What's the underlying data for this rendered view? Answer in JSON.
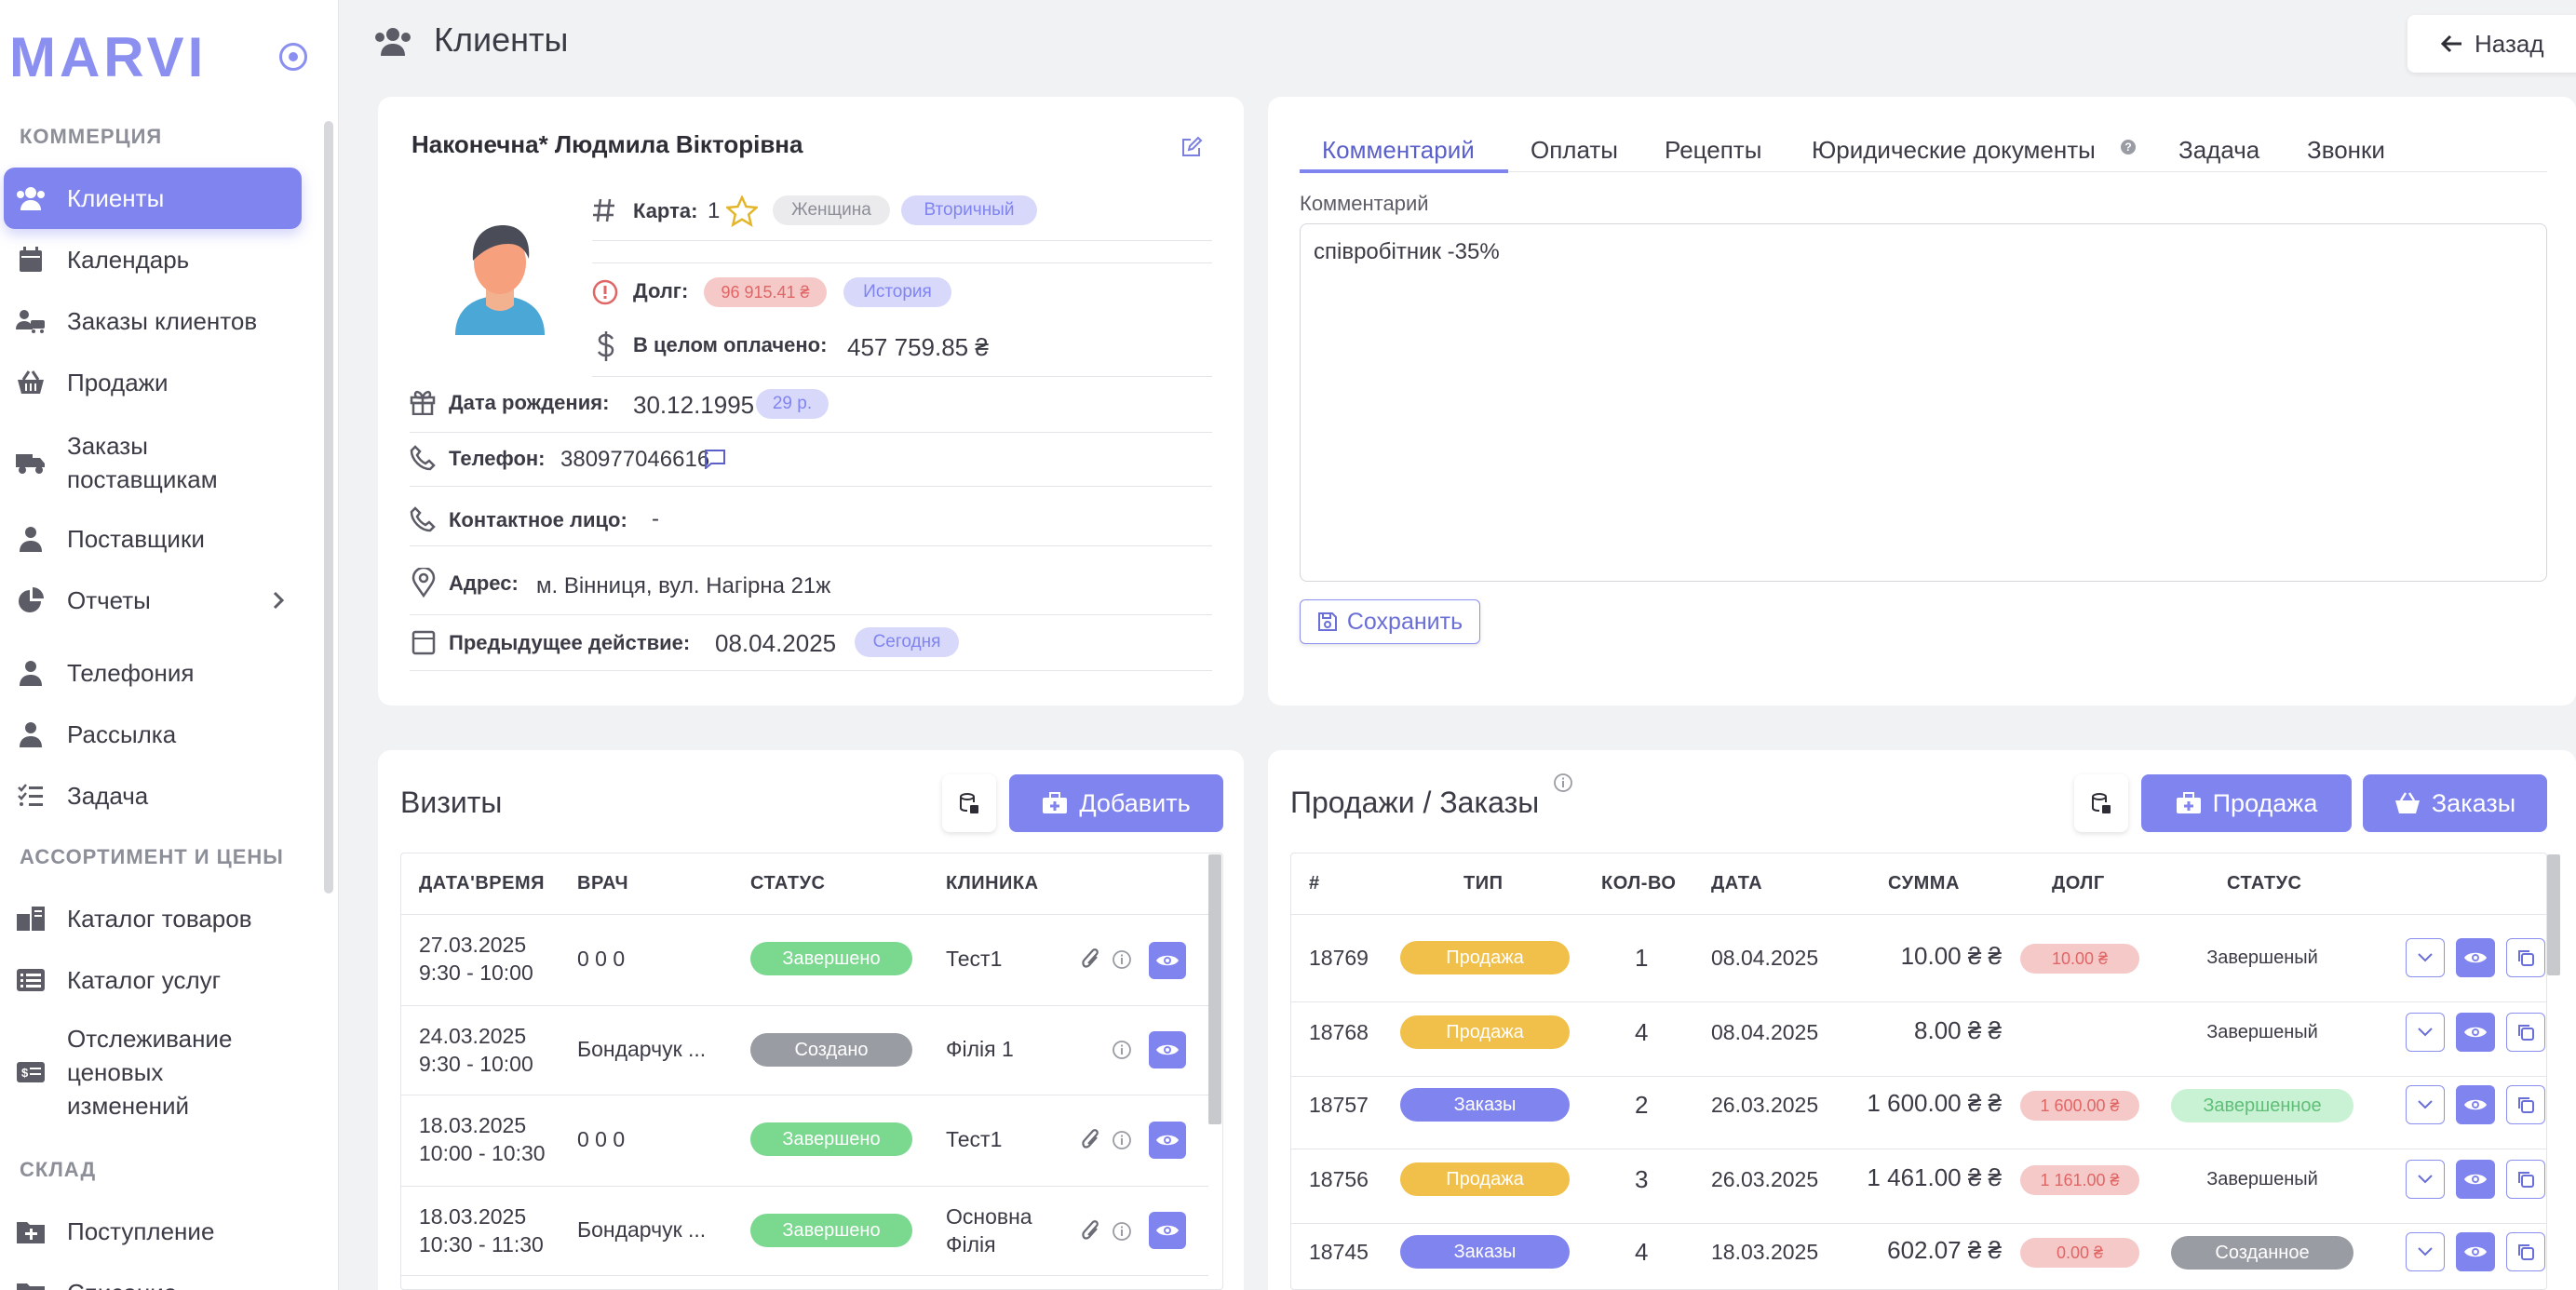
{
  "sidebar": {
    "logo": "MARVI",
    "sections": {
      "commerce": "КОММЕРЦИЯ",
      "assortment": "АССОРТИМЕНТ И ЦЕНЫ",
      "warehouse": "СКЛАД"
    },
    "items": [
      {
        "label": "Клиенты",
        "icon": "users-icon"
      },
      {
        "label": "Календарь",
        "icon": "calendar-icon"
      },
      {
        "label": "Заказы клиентов",
        "icon": "cart-user-icon"
      },
      {
        "label": "Продажи",
        "icon": "basket-icon"
      },
      {
        "label": "Заказы поставщикам",
        "icon": "truck-icon"
      },
      {
        "label": "Поставщики",
        "icon": "user-tie-icon"
      },
      {
        "label": "Отчеты",
        "icon": "pie-chart-icon"
      },
      {
        "label": "Телефония",
        "icon": "user-headset-icon"
      },
      {
        "label": "Рассылка",
        "icon": "user-tie-icon"
      },
      {
        "label": "Задача",
        "icon": "checklist-icon"
      },
      {
        "label": "Каталог товаров",
        "icon": "catalog-icon"
      },
      {
        "label": "Каталог услуг",
        "icon": "list-icon"
      },
      {
        "label": "Отслеживание ценовых изменений",
        "icon": "money-icon"
      },
      {
        "label": "Поступление",
        "icon": "folder-plus-icon"
      },
      {
        "label": "Списание",
        "icon": "folder-minus-icon"
      }
    ]
  },
  "header": {
    "title": "Клиенты",
    "back": "Назад"
  },
  "client": {
    "name": "Наконечна* Людмила Вікторівна",
    "card_label": "Карта:",
    "card_value": "1",
    "gender": "Женщина",
    "type": "Вторичный",
    "debt_label": "Долг:",
    "debt_value": "96 915.41 ₴",
    "history": "История",
    "paid_label": "В целом оплачено:",
    "paid_value": "457 759.85 ₴",
    "birth_label": "Дата рождения:",
    "birth_value": "30.12.1995",
    "age": "29 р.",
    "phone_label": "Телефон:",
    "phone_value": "380977046616",
    "contact_label": "Контактное лицо:",
    "contact_value": "-",
    "address_label": "Адрес:",
    "address_value": "м. Вінниця, вул. Нагірна 21ж",
    "prev_label": "Предыдущее действие:",
    "prev_value": "08.04.2025",
    "prev_badge": "Сегодня"
  },
  "tabs": [
    "Комментарий",
    "Оплаты",
    "Рецепты",
    "Юридические документы",
    "Задача",
    "Звонки"
  ],
  "comment": {
    "label": "Комментарий",
    "text": "співробітник -35%",
    "save": "Сохранить"
  },
  "visits": {
    "title": "Визиты",
    "add": "Добавить",
    "columns": [
      "ДАТА'ВРЕМЯ",
      "ВРАЧ",
      "СТАТУС",
      "КЛИНИКА"
    ],
    "rows": [
      {
        "date": "27.03.2025",
        "time": "9:30 - 10:00",
        "doctor": "0 0 0",
        "status": "Завершено",
        "clinic": "Тест1",
        "clinic2": ""
      },
      {
        "date": "24.03.2025",
        "time": "9:30 - 10:00",
        "doctor": "Бондарчук ...",
        "status": "Создано",
        "clinic": "Філія 1",
        "clinic2": ""
      },
      {
        "date": "18.03.2025",
        "time": "10:00 - 10:30",
        "doctor": "0 0 0",
        "status": "Завершено",
        "clinic": "Тест1",
        "clinic2": ""
      },
      {
        "date": "18.03.2025",
        "time": "10:30 - 11:30",
        "doctor": "Бондарчук ...",
        "status": "Завершено",
        "clinic": "Основна",
        "clinic2": "Філія"
      }
    ]
  },
  "sales": {
    "title": "Продажи / Заказы",
    "sale_btn": "Продажа",
    "orders_btn": "Заказы",
    "columns": [
      "#",
      "ТИП",
      "КОЛ-ВО",
      "ДАТА",
      "СУММА",
      "ДОЛГ",
      "СТАТУС"
    ],
    "rows": [
      {
        "id": "18769",
        "type": "Продажа",
        "qty": "1",
        "date": "08.04.2025",
        "sum": "10.00 ₴ ₴",
        "debt": "10.00 ₴",
        "status": "Завершеный"
      },
      {
        "id": "18768",
        "type": "Продажа",
        "qty": "4",
        "date": "08.04.2025",
        "sum": "8.00 ₴ ₴",
        "debt": "",
        "status": "Завершеный"
      },
      {
        "id": "18757",
        "type": "Заказы",
        "qty": "2",
        "date": "26.03.2025",
        "sum": "1 600.00 ₴ ₴",
        "debt": "1 600.00 ₴",
        "status": "Завершенное"
      },
      {
        "id": "18756",
        "type": "Продажа",
        "qty": "3",
        "date": "26.03.2025",
        "sum": "1 461.00 ₴ ₴",
        "debt": "1 161.00 ₴",
        "status": "Завершеный"
      },
      {
        "id": "18745",
        "type": "Заказы",
        "qty": "4",
        "date": "18.03.2025",
        "sum": "602.07 ₴ ₴",
        "debt": "0.00 ₴",
        "status": "Созданное"
      }
    ]
  },
  "colors": {
    "accent": "#8084ef",
    "green": "#7bd88f",
    "gray": "#9a9ca4",
    "yellow": "#f1c04a",
    "debt_pink": "#f6c9c9",
    "lilac": "#d8d9fa"
  }
}
